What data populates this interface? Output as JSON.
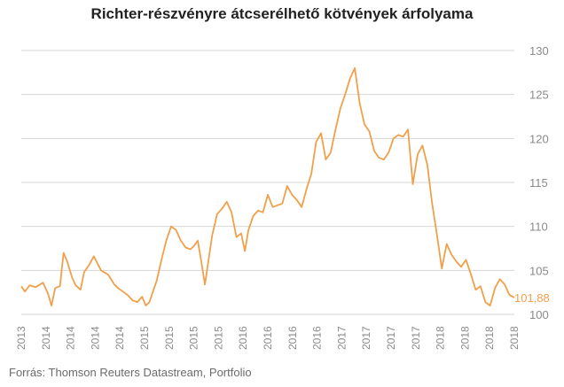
{
  "chart_data": {
    "type": "line",
    "title": "Richter-részvényre átcserélhető kötvények árfolyama",
    "source": "Forrás: Thomson Reuters Datastream, Portfolio",
    "ylim": [
      100,
      130
    ],
    "yticks": [
      "100",
      "105",
      "110",
      "115",
      "120",
      "125",
      "130"
    ],
    "xticks": [
      "2013",
      "2014",
      "2014",
      "2014",
      "2014",
      "2015",
      "2015",
      "2015",
      "2015",
      "2016",
      "2016",
      "2016",
      "2016",
      "2017",
      "2017",
      "2017",
      "2017",
      "2018",
      "2018",
      "2018",
      "2018"
    ],
    "xlim": [
      0,
      20.4
    ],
    "grid": true,
    "line_color": "#f0a04b",
    "last_value_label": "101,88",
    "series": [
      {
        "x": [
          0.0,
          0.15,
          0.35,
          0.6,
          0.9,
          1.1,
          1.25,
          1.4,
          1.6,
          1.75,
          1.9,
          2.1,
          2.25,
          2.45,
          2.6,
          2.8,
          3.0,
          3.3,
          3.6,
          3.85,
          4.0,
          4.2,
          4.4,
          4.6,
          4.8,
          5.0,
          5.15,
          5.3,
          5.45,
          5.6,
          5.8,
          6.0,
          6.2,
          6.4,
          6.6,
          6.8,
          7.0,
          7.15,
          7.3,
          7.45,
          7.6,
          7.75,
          7.9,
          8.1,
          8.3,
          8.5,
          8.7,
          8.9,
          9.1,
          9.25,
          9.4,
          9.6,
          9.8,
          10.0,
          10.2,
          10.4,
          10.6,
          10.8,
          11.0,
          11.2,
          11.4,
          11.6,
          11.8,
          12.0,
          12.2,
          12.4,
          12.6,
          12.8,
          13.0,
          13.2,
          13.4,
          13.6,
          13.8,
          14.0,
          14.2,
          14.4,
          14.6,
          14.8,
          15.0,
          15.2,
          15.4,
          15.6,
          15.8,
          16.0,
          16.2,
          16.4,
          16.6,
          16.8,
          17.0,
          17.2,
          17.4,
          17.6,
          17.8,
          18.0,
          18.2,
          18.4,
          18.6,
          18.8,
          19.0,
          19.2,
          19.4,
          19.6,
          19.8,
          20.0,
          20.2,
          20.4
        ],
        "values": [
          103.2,
          102.6,
          103.3,
          103.1,
          103.6,
          102.4,
          101.0,
          103.0,
          103.2,
          107.0,
          106.0,
          104.2,
          103.3,
          102.8,
          104.8,
          105.6,
          106.6,
          105.0,
          104.5,
          103.4,
          103.0,
          102.6,
          102.2,
          101.6,
          101.4,
          102.0,
          101.0,
          101.4,
          102.6,
          103.8,
          106.2,
          108.4,
          110.0,
          109.6,
          108.4,
          107.6,
          107.4,
          107.8,
          108.4,
          106.0,
          103.4,
          106.2,
          109.0,
          111.4,
          112.0,
          112.8,
          111.6,
          108.8,
          109.2,
          107.2,
          109.6,
          111.2,
          111.8,
          111.6,
          113.6,
          112.2,
          112.4,
          112.6,
          114.6,
          113.6,
          113.0,
          112.2,
          114.2,
          116.0,
          119.6,
          120.6,
          117.6,
          118.4,
          121.0,
          123.4,
          125.0,
          126.8,
          128.0,
          124.0,
          121.6,
          120.8,
          118.6,
          117.8,
          117.6,
          118.4,
          120.0,
          120.4,
          120.2,
          121.0,
          114.8,
          118.2,
          119.2,
          117.0,
          112.6,
          109.0,
          105.2,
          108.0,
          106.8,
          106.0,
          105.4,
          106.2,
          104.6,
          102.8,
          103.2,
          101.4,
          101.0,
          103.0,
          104.0,
          103.4,
          102.2,
          101.9
        ]
      }
    ]
  }
}
